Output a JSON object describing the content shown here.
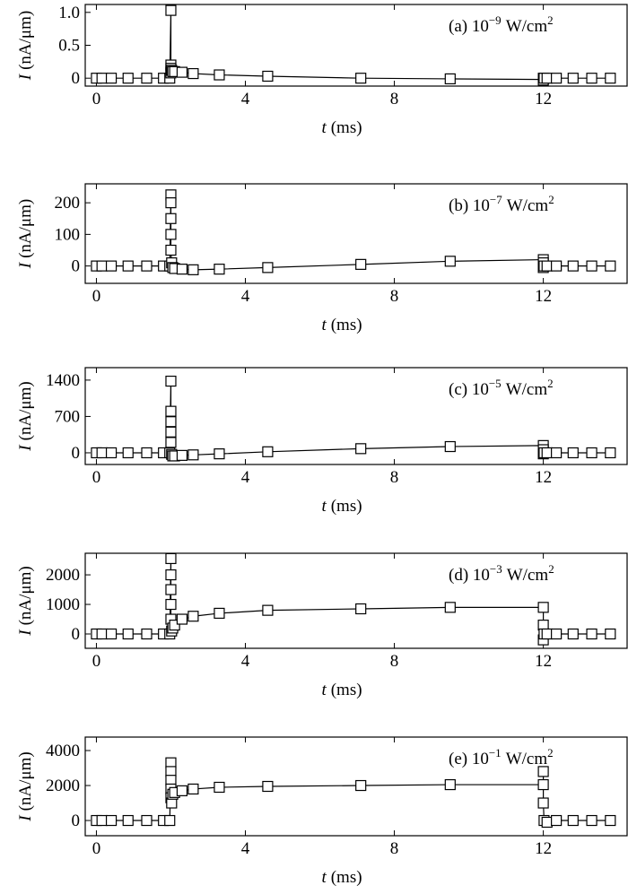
{
  "chart_data": [
    {
      "type": "line",
      "color": "#000000",
      "marker": "square",
      "annotation": {
        "text": "(a) 10",
        "exponent": "−9",
        "unit": "W/cm",
        "unit_exponent": "2"
      },
      "xlabel": {
        "var": "t",
        "unit": "(ms)"
      },
      "ylabel": {
        "var": "I",
        "unit": "(nA/μm)"
      },
      "xlim": [
        -0.3,
        14.25
      ],
      "xticks": [
        0,
        4,
        8,
        12
      ],
      "ylim": [
        -0.12,
        1.12
      ],
      "yticks": [
        0,
        0.5,
        {
          "value": 1,
          "label": "1.0"
        }
      ],
      "x": [
        0,
        0.15,
        0.4,
        0.85,
        1.35,
        1.8,
        1.97,
        2.0,
        2.0,
        2.0,
        2.0,
        2.0,
        2.02,
        2.05,
        2.1,
        2.3,
        2.6,
        3.3,
        4.6,
        7.1,
        9.5,
        12.0,
        12.0,
        12.0,
        12.02,
        12.1,
        12.35,
        12.8,
        13.3,
        13.8
      ],
      "values": [
        0,
        0,
        0,
        0,
        0,
        0,
        0,
        1.03,
        0.2,
        0.15,
        0.1,
        0.08,
        0.12,
        0.1,
        0.1,
        0.09,
        0.07,
        0.05,
        0.03,
        0,
        -0.01,
        -0.02,
        0,
        -0.03,
        0,
        0,
        0,
        0,
        0,
        0
      ]
    },
    {
      "type": "line",
      "color": "#000000",
      "marker": "square",
      "annotation": {
        "text": "(b) 10",
        "exponent": "−7",
        "unit": "W/cm",
        "unit_exponent": "2"
      },
      "xlabel": {
        "var": "t",
        "unit": "(ms)"
      },
      "ylabel": {
        "var": "I",
        "unit": "(nA/μm)"
      },
      "xlim": [
        -0.3,
        14.25
      ],
      "xticks": [
        0,
        4,
        8,
        12
      ],
      "ylim": [
        -55,
        260
      ],
      "yticks": [
        0,
        100,
        200
      ],
      "x": [
        0,
        0.15,
        0.4,
        0.85,
        1.35,
        1.8,
        1.97,
        2.0,
        2.0,
        2.0,
        2.0,
        2.0,
        2.02,
        2.05,
        2.1,
        2.3,
        2.6,
        3.3,
        4.6,
        7.1,
        9.5,
        12.0,
        12.0,
        12.0,
        12.02,
        12.1,
        12.35,
        12.8,
        13.3,
        13.8
      ],
      "values": [
        0,
        0,
        0,
        0,
        0,
        0,
        0,
        225,
        200,
        150,
        100,
        50,
        10,
        -5,
        -8,
        -10,
        -12,
        -10,
        -5,
        5,
        15,
        20,
        10,
        -5,
        0,
        0,
        0,
        0,
        0,
        0
      ]
    },
    {
      "type": "line",
      "color": "#000000",
      "marker": "square",
      "annotation": {
        "text": "(c) 10",
        "exponent": "−5",
        "unit": "W/cm",
        "unit_exponent": "2"
      },
      "xlabel": {
        "var": "t",
        "unit": "(ms)"
      },
      "ylabel": {
        "var": "I",
        "unit": "(nA/μm)"
      },
      "xlim": [
        -0.3,
        14.25
      ],
      "xticks": [
        0,
        4,
        8,
        12
      ],
      "ylim": [
        -225,
        1640
      ],
      "yticks": [
        0,
        700,
        1400
      ],
      "x": [
        0,
        0.15,
        0.4,
        0.85,
        1.35,
        1.8,
        1.97,
        2.0,
        2.0,
        2.0,
        2.0,
        2.0,
        2.02,
        2.05,
        2.1,
        2.3,
        2.6,
        3.3,
        4.6,
        7.1,
        9.5,
        12.0,
        12.0,
        12.0,
        12.02,
        12.1,
        12.35,
        12.8,
        13.3,
        13.8
      ],
      "values": [
        0,
        0,
        0,
        0,
        0,
        0,
        0,
        1380,
        800,
        600,
        400,
        200,
        -30,
        -60,
        -60,
        -50,
        -40,
        -20,
        20,
        80,
        120,
        140,
        60,
        -20,
        0,
        0,
        0,
        0,
        0,
        0
      ]
    },
    {
      "type": "line",
      "color": "#000000",
      "marker": "square",
      "annotation": {
        "text": "(d) 10",
        "exponent": "−3",
        "unit": "W/cm",
        "unit_exponent": "2"
      },
      "xlabel": {
        "var": "t",
        "unit": "(ms)"
      },
      "ylabel": {
        "var": "I",
        "unit": "(nA/μm)"
      },
      "xlim": [
        -0.3,
        14.25
      ],
      "xticks": [
        0,
        4,
        8,
        12
      ],
      "ylim": [
        -485,
        2730
      ],
      "yticks": [
        0,
        1000,
        2000
      ],
      "x": [
        0,
        0.15,
        0.4,
        0.85,
        1.35,
        1.8,
        1.97,
        2.0,
        2.0,
        2.0,
        2.0,
        2.0,
        2.02,
        2.05,
        2.1,
        2.3,
        2.6,
        3.3,
        4.6,
        7.1,
        9.5,
        12.0,
        12.0,
        12.0,
        12.02,
        12.1,
        12.35,
        12.8,
        13.3,
        13.8
      ],
      "values": [
        0,
        0,
        0,
        0,
        0,
        0,
        0,
        2550,
        2000,
        1500,
        1000,
        500,
        100,
        200,
        300,
        500,
        600,
        700,
        800,
        850,
        900,
        900,
        300,
        -200,
        0,
        0,
        0,
        0,
        0,
        0
      ]
    },
    {
      "type": "line",
      "color": "#000000",
      "marker": "square",
      "annotation": {
        "text": "(e) 10",
        "exponent": "−1",
        "unit": "W/cm",
        "unit_exponent": "2"
      },
      "xlabel": {
        "var": "t",
        "unit": "(ms)"
      },
      "ylabel": {
        "var": "I",
        "unit": "(nA/μm)"
      },
      "xlim": [
        -0.3,
        14.25
      ],
      "xticks": [
        0,
        4,
        8,
        12
      ],
      "ylim": [
        -870,
        4770
      ],
      "yticks": [
        0,
        2000,
        4000
      ],
      "x": [
        0,
        0.15,
        0.4,
        0.85,
        1.35,
        1.8,
        1.97,
        2.0,
        2.0,
        2.0,
        2.0,
        2.0,
        2.02,
        2.05,
        2.1,
        2.3,
        2.6,
        3.3,
        4.6,
        7.1,
        9.5,
        12.0,
        12.0,
        12.0,
        12.02,
        12.1,
        12.35,
        12.8,
        13.3,
        13.8
      ],
      "values": [
        0,
        0,
        0,
        0,
        0,
        0,
        0,
        3300,
        2800,
        2300,
        1800,
        1300,
        1000,
        1500,
        1600,
        1700,
        1800,
        1900,
        1950,
        2000,
        2050,
        2050,
        2800,
        1000,
        0,
        -100,
        0,
        0,
        0,
        0
      ]
    }
  ]
}
